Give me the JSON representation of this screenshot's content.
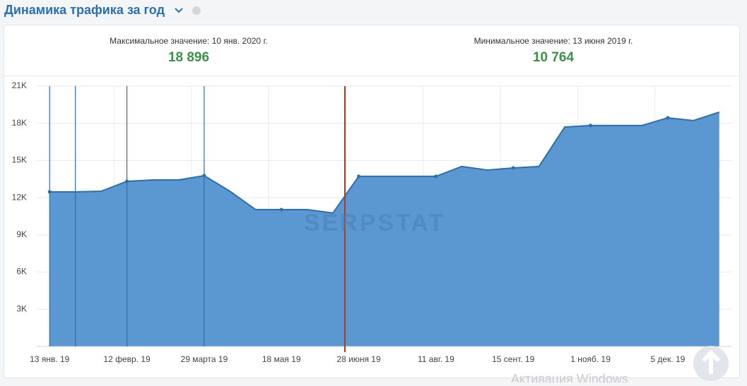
{
  "header": {
    "title": "Динамика трафика за год"
  },
  "stats": [
    {
      "label": "Максимальное значение: 10 янв. 2020 г.",
      "value": "18 896"
    },
    {
      "label": "Минимальное значение: 13 июня 2019 г.",
      "value": "10 764"
    }
  ],
  "watermark": "SERPSTAT",
  "overlay_text": "Активация Windows",
  "chart_data": {
    "type": "area",
    "color": "#5b97d1",
    "line_color": "#2f6ea8",
    "grid": true,
    "categories": [
      "13 янв. 19",
      null,
      null,
      "12 февр. 19",
      null,
      null,
      "29 марта 19",
      null,
      null,
      "18 мая 19",
      null,
      null,
      "28 июня 19",
      null,
      null,
      "11 авг. 19",
      null,
      null,
      "15 сент. 19",
      null,
      null,
      "1 нояб. 19",
      null,
      null,
      "5 дек. 19",
      null,
      null
    ],
    "values": [
      12470,
      12470,
      12520,
      13320,
      13430,
      13430,
      13780,
      12520,
      11040,
      11040,
      11040,
      10764,
      13720,
      13720,
      13720,
      13720,
      14520,
      14230,
      14400,
      14520,
      17700,
      17820,
      17820,
      17820,
      18440,
      18220,
      18896
    ],
    "ylim": [
      0,
      21000
    ],
    "yticks": [
      {
        "value": 3000,
        "label": "3K"
      },
      {
        "value": 6000,
        "label": "6K"
      },
      {
        "value": 9000,
        "label": "9K"
      },
      {
        "value": 12000,
        "label": "12K"
      },
      {
        "value": 15000,
        "label": "15K"
      },
      {
        "value": 18000,
        "label": "18K"
      },
      {
        "value": 21000,
        "label": "21K"
      }
    ]
  }
}
